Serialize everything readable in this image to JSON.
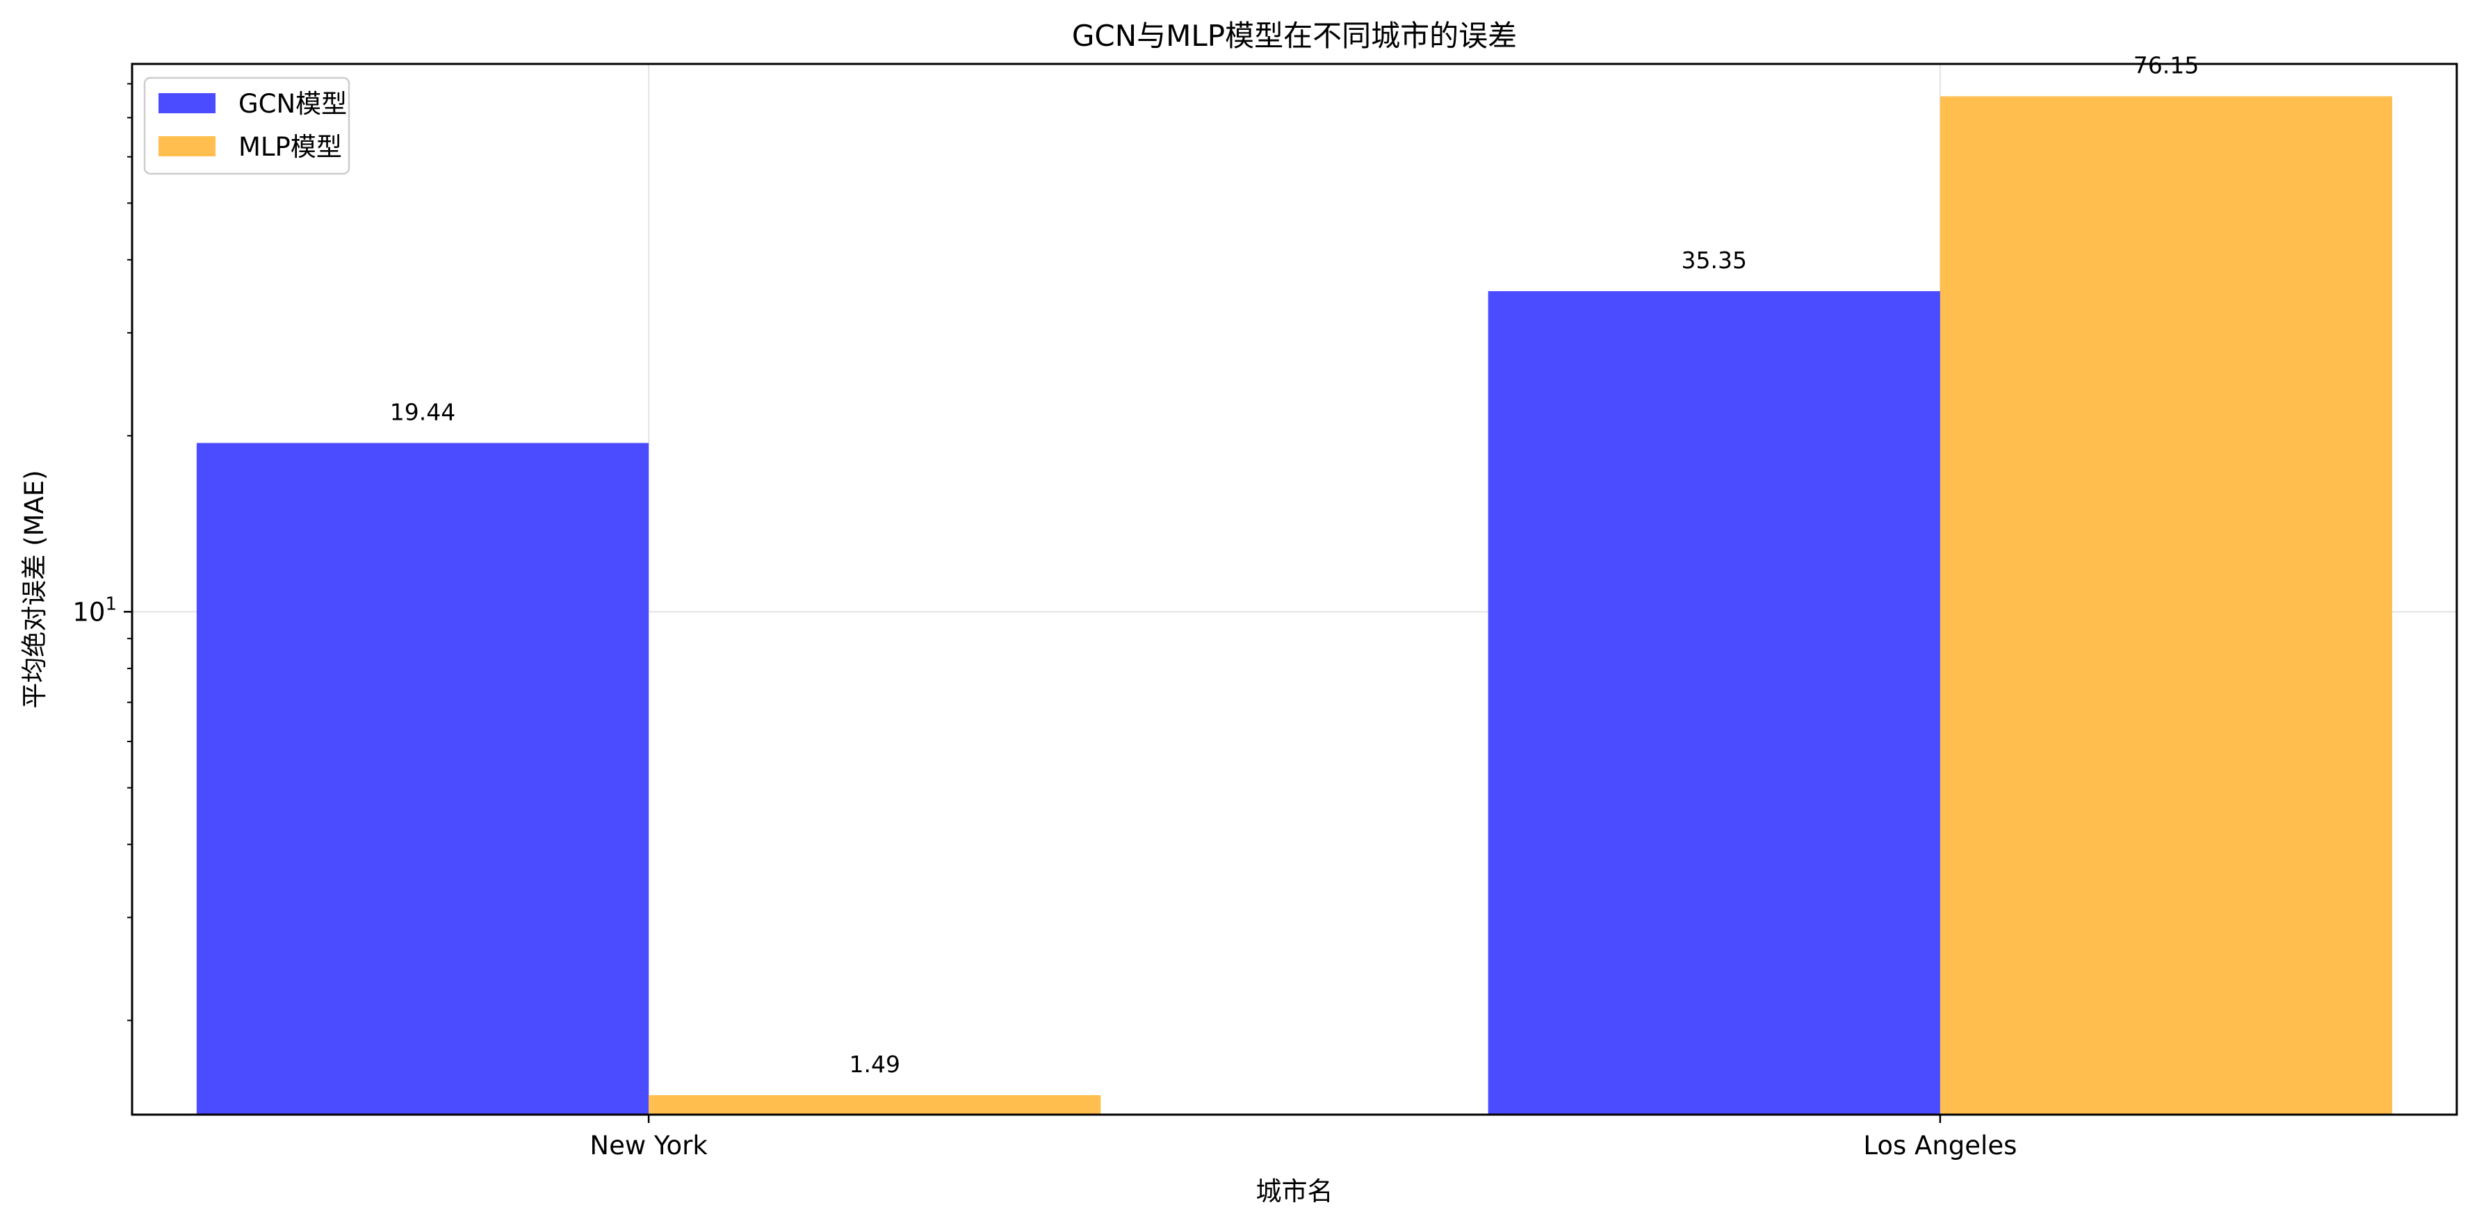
{
  "chart_data": {
    "type": "bar",
    "title": "GCN与MLP模型在不同城市的误差",
    "xlabel": "城市名",
    "ylabel": "平均绝对误差 (MAE)",
    "categories": [
      "New York",
      "Los Angeles"
    ],
    "series": [
      {
        "name": "GCN模型",
        "values": [
          19.44,
          35.35
        ],
        "color": "#4b4bff"
      },
      {
        "name": "MLP模型",
        "values": [
          1.49,
          76.15
        ],
        "color": "#ffbe4d"
      }
    ],
    "y_scale": "log",
    "ylim": [
      1.38,
      86.5
    ],
    "yticks": [
      {
        "value": 10,
        "label_base": "10",
        "label_exp": "1"
      }
    ],
    "grid": true,
    "legend_position": "top-left"
  }
}
